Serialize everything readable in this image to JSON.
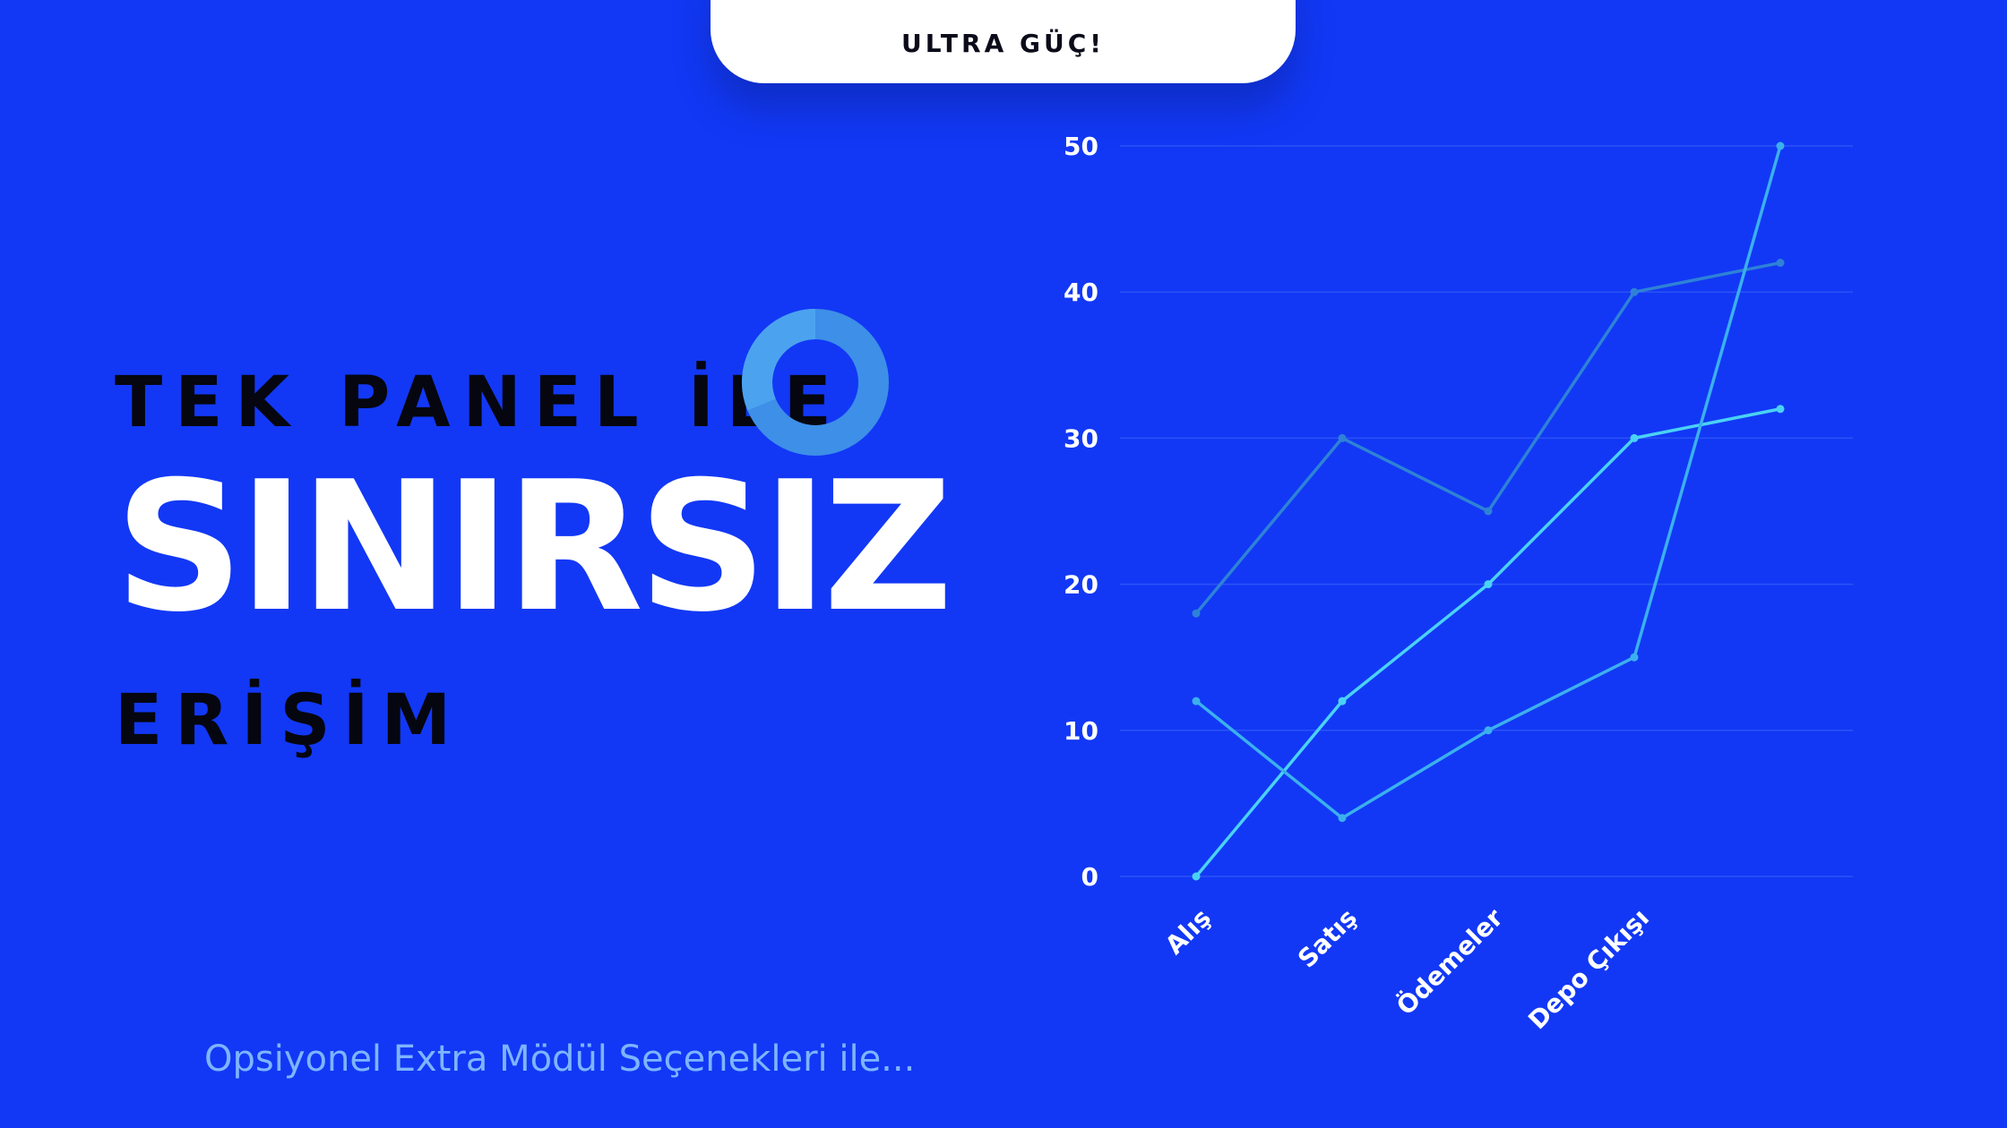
{
  "header": {
    "tab_label": "ULTRA GÜÇ!"
  },
  "hero": {
    "line1": "TEK PANEL İLE",
    "line2": "SINIRSIZ",
    "line3": "ERİŞİM"
  },
  "footer": {
    "subtitle": "Opsiyonel Extra Mödül Seçenekleri ile..."
  },
  "icons": {
    "ring": "donut-ring-icon"
  },
  "colors": {
    "background": "#1238f5",
    "ring": "#3d8fe8",
    "text_dark": "#05060f",
    "subtitle": "#7fb4ff"
  },
  "chart_data": {
    "type": "line",
    "categories": [
      "Alış",
      "Satış",
      "Ödemeler",
      "Depo Çıkışı",
      ""
    ],
    "ylim": [
      0,
      50
    ],
    "yticks": [
      0,
      10,
      20,
      30,
      40,
      50
    ],
    "grid": true,
    "series": [
      {
        "values": [
          18,
          30,
          25,
          40,
          42
        ],
        "color": "#2e82d6"
      },
      {
        "values": [
          0,
          12,
          20,
          30,
          32
        ],
        "color": "#4ad2f5"
      },
      {
        "values": [
          12,
          4,
          10,
          15,
          50
        ],
        "color": "#3bb0ee"
      }
    ]
  }
}
